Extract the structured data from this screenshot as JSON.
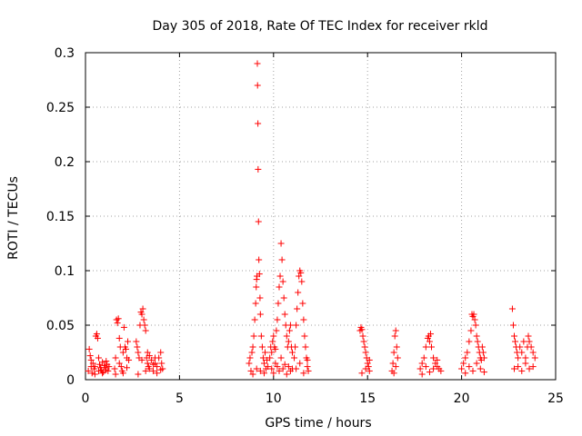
{
  "chart_data": {
    "type": "scatter",
    "title": "Day 305 of 2018, Rate Of TEC Index for receiver rkld",
    "xlabel": "GPS time / hours",
    "ylabel": "ROTI / TECUs",
    "xlim": [
      0,
      25
    ],
    "ylim": [
      0,
      0.3
    ],
    "xticks": [
      0,
      5,
      10,
      15,
      20,
      25
    ],
    "xtick_labels": [
      "0",
      "5",
      "10",
      "15",
      "20",
      "25"
    ],
    "yticks": [
      0,
      0.05,
      0.1,
      0.15,
      0.2,
      0.25,
      0.3
    ],
    "ytick_labels": [
      "0",
      "0.05",
      "0.1",
      "0.15",
      "0.2",
      "0.25",
      "0.3"
    ],
    "grid": true,
    "marker": "+",
    "marker_color": "#ff0000",
    "series": [
      {
        "name": "ROTI",
        "points": [
          [
            0.15,
            0.008
          ],
          [
            0.2,
            0.028
          ],
          [
            0.25,
            0.022
          ],
          [
            0.3,
            0.012
          ],
          [
            0.35,
            0.006
          ],
          [
            0.4,
            0.015
          ],
          [
            0.45,
            0.01
          ],
          [
            0.5,
            0.012
          ],
          [
            0.55,
            0.04
          ],
          [
            0.6,
            0.042
          ],
          [
            0.65,
            0.038
          ],
          [
            0.7,
            0.008
          ],
          [
            0.75,
            0.014
          ],
          [
            0.8,
            0.011
          ],
          [
            0.85,
            0.009
          ],
          [
            0.9,
            0.016
          ],
          [
            0.95,
            0.007
          ],
          [
            1.0,
            0.013
          ],
          [
            1.05,
            0.011
          ],
          [
            1.1,
            0.009
          ],
          [
            1.15,
            0.014
          ],
          [
            1.2,
            0.008
          ],
          [
            1.25,
            0.012
          ],
          [
            0.3,
            0.018
          ],
          [
            0.5,
            0.005
          ],
          [
            0.7,
            0.02
          ],
          [
            0.9,
            0.006
          ],
          [
            1.1,
            0.017
          ],
          [
            1.55,
            0.01
          ],
          [
            1.6,
            0.02
          ],
          [
            1.65,
            0.055
          ],
          [
            1.7,
            0.052
          ],
          [
            1.75,
            0.056
          ],
          [
            1.8,
            0.038
          ],
          [
            1.85,
            0.03
          ],
          [
            1.9,
            0.012
          ],
          [
            1.95,
            0.008
          ],
          [
            2.0,
            0.025
          ],
          [
            2.05,
            0.048
          ],
          [
            2.1,
            0.03
          ],
          [
            2.15,
            0.028
          ],
          [
            2.2,
            0.02
          ],
          [
            2.25,
            0.035
          ],
          [
            2.3,
            0.018
          ],
          [
            1.6,
            0.005
          ],
          [
            1.8,
            0.015
          ],
          [
            2.0,
            0.006
          ],
          [
            2.2,
            0.011
          ],
          [
            2.7,
            0.035
          ],
          [
            2.75,
            0.03
          ],
          [
            2.8,
            0.025
          ],
          [
            2.85,
            0.02
          ],
          [
            2.9,
            0.05
          ],
          [
            2.95,
            0.062
          ],
          [
            3.0,
            0.06
          ],
          [
            3.05,
            0.065
          ],
          [
            3.1,
            0.055
          ],
          [
            3.15,
            0.05
          ],
          [
            3.2,
            0.045
          ],
          [
            3.25,
            0.02
          ],
          [
            3.3,
            0.015
          ],
          [
            3.35,
            0.012
          ],
          [
            3.4,
            0.01
          ],
          [
            3.5,
            0.018
          ],
          [
            3.6,
            0.008
          ],
          [
            3.7,
            0.015
          ],
          [
            3.8,
            0.012
          ],
          [
            3.9,
            0.02
          ],
          [
            4.0,
            0.025
          ],
          [
            4.05,
            0.015
          ],
          [
            4.1,
            0.01
          ],
          [
            2.8,
            0.005
          ],
          [
            3.0,
            0.018
          ],
          [
            3.2,
            0.008
          ],
          [
            3.4,
            0.022
          ],
          [
            3.6,
            0.014
          ],
          [
            3.8,
            0.006
          ],
          [
            4.0,
            0.009
          ],
          [
            3.3,
            0.025
          ],
          [
            3.7,
            0.02
          ],
          [
            8.7,
            0.015
          ],
          [
            8.75,
            0.02
          ],
          [
            8.8,
            0.008
          ],
          [
            8.85,
            0.025
          ],
          [
            8.9,
            0.03
          ],
          [
            8.95,
            0.04
          ],
          [
            9.0,
            0.055
          ],
          [
            9.05,
            0.07
          ],
          [
            9.08,
            0.085
          ],
          [
            9.1,
            0.092
          ],
          [
            9.12,
            0.095
          ],
          [
            9.14,
            0.29
          ],
          [
            9.15,
            0.27
          ],
          [
            9.17,
            0.235
          ],
          [
            9.18,
            0.193
          ],
          [
            9.2,
            0.145
          ],
          [
            9.22,
            0.11
          ],
          [
            9.25,
            0.097
          ],
          [
            9.28,
            0.075
          ],
          [
            9.3,
            0.06
          ],
          [
            9.35,
            0.04
          ],
          [
            9.4,
            0.03
          ],
          [
            9.45,
            0.02
          ],
          [
            9.5,
            0.015
          ],
          [
            9.55,
            0.025
          ],
          [
            9.6,
            0.01
          ],
          [
            9.65,
            0.018
          ],
          [
            9.7,
            0.012
          ],
          [
            8.9,
            0.005
          ],
          [
            9.1,
            0.01
          ],
          [
            9.3,
            0.008
          ],
          [
            9.5,
            0.006
          ],
          [
            9.8,
            0.02
          ],
          [
            9.85,
            0.03
          ],
          [
            9.9,
            0.025
          ],
          [
            9.95,
            0.035
          ],
          [
            10.0,
            0.04
          ],
          [
            10.05,
            0.03
          ],
          [
            10.1,
            0.028
          ],
          [
            10.15,
            0.045
          ],
          [
            10.2,
            0.055
          ],
          [
            10.25,
            0.07
          ],
          [
            10.3,
            0.085
          ],
          [
            10.35,
            0.095
          ],
          [
            10.4,
            0.125
          ],
          [
            10.45,
            0.11
          ],
          [
            10.5,
            0.09
          ],
          [
            10.55,
            0.075
          ],
          [
            10.6,
            0.06
          ],
          [
            10.65,
            0.05
          ],
          [
            10.7,
            0.04
          ],
          [
            10.75,
            0.03
          ],
          [
            10.8,
            0.035
          ],
          [
            10.85,
            0.045
          ],
          [
            10.9,
            0.05
          ],
          [
            10.95,
            0.03
          ],
          [
            11.0,
            0.025
          ],
          [
            9.9,
            0.01
          ],
          [
            10.0,
            0.006
          ],
          [
            10.1,
            0.015
          ],
          [
            10.2,
            0.012
          ],
          [
            10.3,
            0.008
          ],
          [
            10.4,
            0.02
          ],
          [
            10.5,
            0.01
          ],
          [
            10.6,
            0.014
          ],
          [
            10.7,
            0.005
          ],
          [
            10.8,
            0.012
          ],
          [
            10.9,
            0.008
          ],
          [
            11.0,
            0.01
          ],
          [
            11.1,
            0.02
          ],
          [
            11.15,
            0.03
          ],
          [
            11.2,
            0.05
          ],
          [
            11.25,
            0.065
          ],
          [
            11.3,
            0.08
          ],
          [
            11.35,
            0.095
          ],
          [
            11.4,
            0.1
          ],
          [
            11.45,
            0.098
          ],
          [
            11.5,
            0.09
          ],
          [
            11.55,
            0.07
          ],
          [
            11.6,
            0.055
          ],
          [
            11.65,
            0.04
          ],
          [
            11.7,
            0.03
          ],
          [
            11.75,
            0.02
          ],
          [
            11.8,
            0.012
          ],
          [
            11.85,
            0.008
          ],
          [
            11.2,
            0.01
          ],
          [
            11.4,
            0.015
          ],
          [
            11.6,
            0.006
          ],
          [
            11.8,
            0.018
          ],
          [
            14.6,
            0.045
          ],
          [
            14.65,
            0.048
          ],
          [
            14.7,
            0.046
          ],
          [
            14.75,
            0.04
          ],
          [
            14.8,
            0.035
          ],
          [
            14.85,
            0.03
          ],
          [
            14.9,
            0.025
          ],
          [
            14.95,
            0.02
          ],
          [
            15.0,
            0.015
          ],
          [
            15.05,
            0.012
          ],
          [
            15.1,
            0.008
          ],
          [
            14.7,
            0.006
          ],
          [
            14.9,
            0.01
          ],
          [
            15.1,
            0.018
          ],
          [
            16.3,
            0.008
          ],
          [
            16.35,
            0.015
          ],
          [
            16.4,
            0.025
          ],
          [
            16.45,
            0.04
          ],
          [
            16.5,
            0.045
          ],
          [
            16.55,
            0.03
          ],
          [
            16.6,
            0.02
          ],
          [
            16.4,
            0.006
          ],
          [
            16.5,
            0.012
          ],
          [
            17.8,
            0.01
          ],
          [
            17.9,
            0.015
          ],
          [
            18.0,
            0.02
          ],
          [
            18.1,
            0.03
          ],
          [
            18.2,
            0.038
          ],
          [
            18.25,
            0.04
          ],
          [
            18.3,
            0.035
          ],
          [
            18.35,
            0.042
          ],
          [
            18.4,
            0.03
          ],
          [
            18.5,
            0.02
          ],
          [
            18.6,
            0.015
          ],
          [
            18.7,
            0.012
          ],
          [
            18.8,
            0.01
          ],
          [
            18.9,
            0.008
          ],
          [
            17.9,
            0.005
          ],
          [
            18.1,
            0.012
          ],
          [
            18.3,
            0.007
          ],
          [
            18.5,
            0.01
          ],
          [
            18.7,
            0.018
          ],
          [
            20.0,
            0.01
          ],
          [
            20.1,
            0.015
          ],
          [
            20.2,
            0.02
          ],
          [
            20.3,
            0.025
          ],
          [
            20.4,
            0.035
          ],
          [
            20.5,
            0.045
          ],
          [
            20.55,
            0.06
          ],
          [
            20.6,
            0.058
          ],
          [
            20.65,
            0.06
          ],
          [
            20.7,
            0.055
          ],
          [
            20.75,
            0.05
          ],
          [
            20.8,
            0.04
          ],
          [
            20.85,
            0.035
          ],
          [
            20.9,
            0.03
          ],
          [
            20.95,
            0.025
          ],
          [
            21.0,
            0.02
          ],
          [
            21.05,
            0.018
          ],
          [
            21.1,
            0.03
          ],
          [
            21.15,
            0.025
          ],
          [
            21.2,
            0.02
          ],
          [
            20.2,
            0.006
          ],
          [
            20.4,
            0.012
          ],
          [
            20.6,
            0.008
          ],
          [
            20.8,
            0.015
          ],
          [
            21.0,
            0.01
          ],
          [
            21.2,
            0.007
          ],
          [
            22.7,
            0.065
          ],
          [
            22.75,
            0.05
          ],
          [
            22.8,
            0.04
          ],
          [
            22.85,
            0.035
          ],
          [
            22.9,
            0.03
          ],
          [
            22.95,
            0.025
          ],
          [
            23.0,
            0.02
          ],
          [
            23.1,
            0.03
          ],
          [
            23.2,
            0.025
          ],
          [
            23.3,
            0.035
          ],
          [
            23.4,
            0.02
          ],
          [
            23.5,
            0.03
          ],
          [
            23.55,
            0.04
          ],
          [
            23.6,
            0.035
          ],
          [
            23.7,
            0.03
          ],
          [
            23.8,
            0.025
          ],
          [
            23.9,
            0.02
          ],
          [
            22.8,
            0.01
          ],
          [
            23.0,
            0.012
          ],
          [
            23.2,
            0.008
          ],
          [
            23.4,
            0.015
          ],
          [
            23.6,
            0.01
          ],
          [
            23.8,
            0.012
          ]
        ]
      }
    ]
  }
}
